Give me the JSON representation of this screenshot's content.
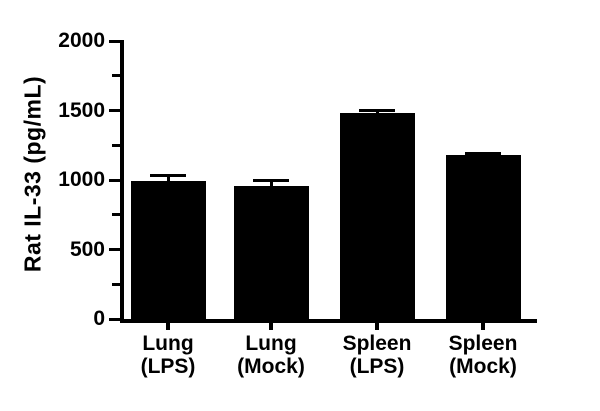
{
  "figure": {
    "background_color": "#ffffff",
    "bar_color": "#000000",
    "axis_color": "#000000",
    "text_color": "#000000"
  },
  "chart_data": {
    "type": "bar",
    "title": "",
    "xlabel": "",
    "ylabel": "Rat IL-33 (pg/mL)",
    "categories": [
      "Lung (LPS)",
      "Lung (Mock)",
      "Spleen (LPS)",
      "Spleen (Mock)"
    ],
    "category_lines": [
      [
        "Lung",
        "(LPS)"
      ],
      [
        "Lung",
        "(Mock)"
      ],
      [
        "Spleen",
        "(LPS)"
      ],
      [
        "Spleen",
        "(Mock)"
      ]
    ],
    "values": [
      990,
      955,
      1480,
      1180
    ],
    "errors": [
      50,
      55,
      30,
      25
    ],
    "error_direction": "up",
    "ylim": [
      0,
      2000
    ],
    "yticks_major": [
      0,
      500,
      1000,
      1500,
      2000
    ],
    "yticks_minor": [
      250,
      750,
      1250,
      1750
    ],
    "grid": false,
    "legend": null
  }
}
